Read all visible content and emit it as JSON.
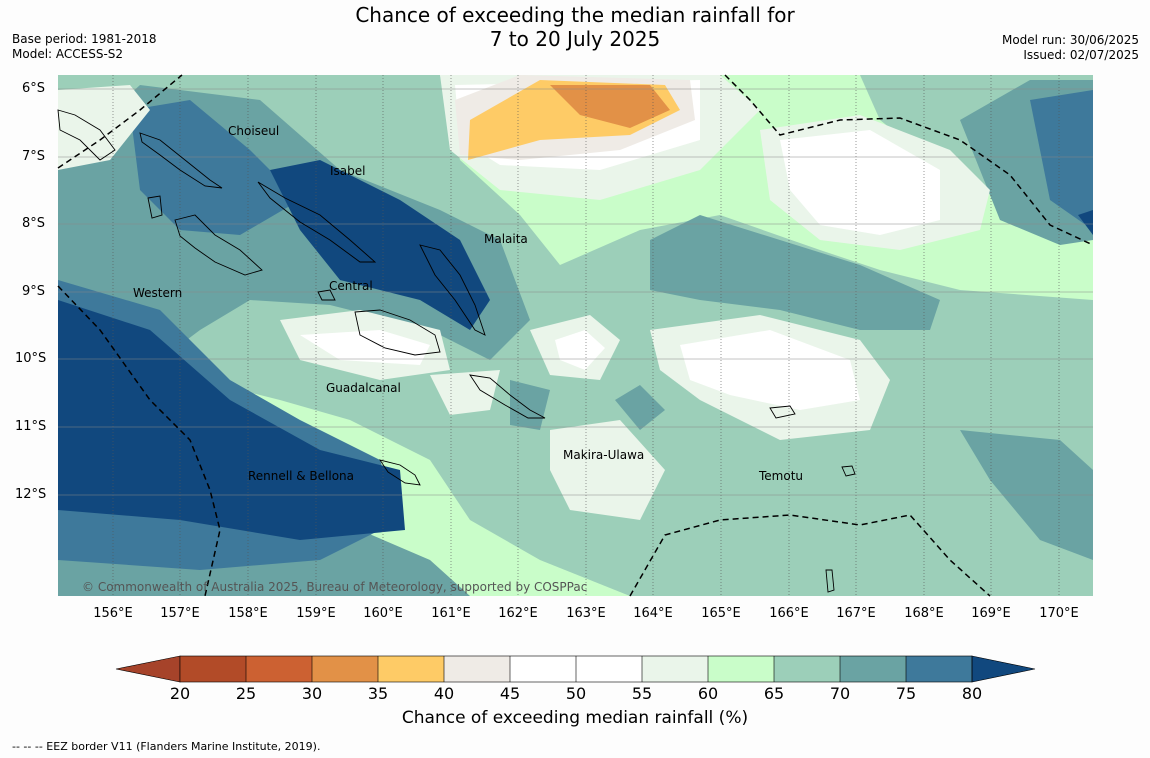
{
  "title_line1": "Chance of exceeding the median rainfall for",
  "title_line2": "7 to 20 July 2025",
  "meta_left": {
    "base": "Base period: 1981-2018",
    "model": "Model: ACCESS-S2"
  },
  "meta_right": {
    "run": "Model run: 30/06/2025",
    "issued": "Issued: 02/07/2025"
  },
  "lat_labels": [
    "6°S",
    "7°S",
    "8°S",
    "9°S",
    "10°S",
    "11°S",
    "12°S"
  ],
  "lon_labels": [
    "156°E",
    "157°E",
    "158°E",
    "159°E",
    "160°E",
    "161°E",
    "162°E",
    "163°E",
    "164°E",
    "165°E",
    "166°E",
    "167°E",
    "168°E",
    "169°E",
    "170°E"
  ],
  "places": [
    "Choiseul",
    "Isabel",
    "Malaita",
    "Western",
    "Central",
    "Guadalcanal",
    "Makira-Ulawa",
    "Rennell & Bellona",
    "Temotu"
  ],
  "copyright": "© Commonwealth of Australia 2025, Bureau of Meteorology, supported by COSPPac",
  "colorbar": {
    "title": "Chance of exceeding median rainfall (%)",
    "ticks": [
      "20",
      "25",
      "30",
      "35",
      "40",
      "45",
      "50",
      "55",
      "60",
      "65",
      "70",
      "75",
      "80"
    ],
    "colors": [
      "#a6432a",
      "#b24b28",
      "#cc6132",
      "#e29147",
      "#fecb66",
      "#efebe6",
      "#ffffff",
      "#ffffff",
      "#eaf5ea",
      "#c9fdc9",
      "#9ccfb9",
      "#6aa3a3",
      "#3e799b",
      "#11487e"
    ]
  },
  "footer": "--  --  -- EEZ border V11 (Flanders Marine Institute, 2019)."
}
